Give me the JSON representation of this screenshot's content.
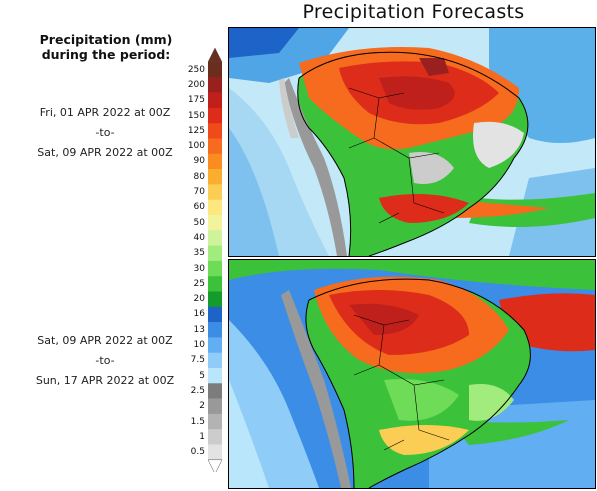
{
  "title": "Precipitation Forecasts",
  "legend": {
    "title_line1": "Precipitation (mm)",
    "title_line2": "during the period:",
    "levels": [
      "250",
      "200",
      "175",
      "150",
      "125",
      "100",
      "90",
      "80",
      "70",
      "60",
      "50",
      "40",
      "35",
      "30",
      "25",
      "20",
      "16",
      "13",
      "10",
      "7.5",
      "5",
      "2.5",
      "2",
      "1.5",
      "1",
      "0.5"
    ],
    "colors": [
      "#6b2e1e",
      "#9a1f1f",
      "#c0201c",
      "#dd2c19",
      "#ef4a1a",
      "#f66b1d",
      "#fa8c22",
      "#fbad2f",
      "#fccd55",
      "#fde77f",
      "#f2f39a",
      "#cef39a",
      "#a2ec7e",
      "#6fdc58",
      "#3bc23a",
      "#139c2b",
      "#1e63c8",
      "#3b8de6",
      "#62aef3",
      "#8fcdf8",
      "#b9e6fb",
      "#7c7c7c",
      "#999999",
      "#b3b3b3",
      "#cccccc",
      "#e3e3e3"
    ],
    "over_color": "#6b2e1e",
    "under_color": "#ffffff"
  },
  "periods": [
    {
      "start": "Fri, 01 APR 2022 at 00Z",
      "sep": "-to-",
      "end": "Sat, 09 APR 2022 at 00Z"
    },
    {
      "start": "Sat, 09 APR 2022 at 00Z",
      "sep": "-to-",
      "end": "Sun, 17 APR 2022 at 00Z"
    }
  ]
}
